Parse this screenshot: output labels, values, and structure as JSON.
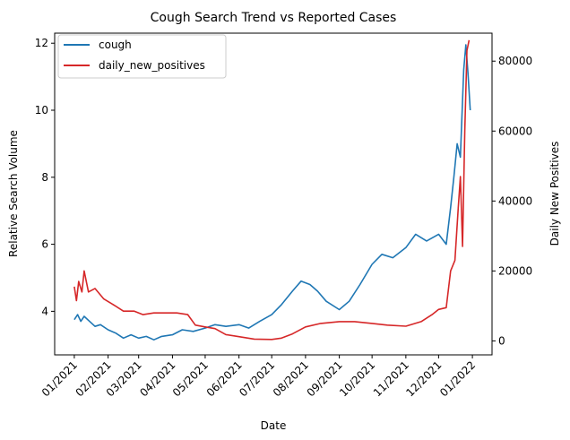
{
  "chart_data": {
    "type": "line",
    "title": "Cough Search Trend vs Reported Cases",
    "xlabel": "Date",
    "ylabel_left": "Relative Search Volume",
    "ylabel_right": "Daily New Positives",
    "x_ticks": [
      "01/2021",
      "02/2021",
      "03/2021",
      "04/2021",
      "05/2021",
      "06/2021",
      "07/2021",
      "08/2021",
      "09/2021",
      "10/2021",
      "11/2021",
      "12/2021",
      "01/2022"
    ],
    "x_tick_dates": [
      "2021-01-01",
      "2021-02-01",
      "2021-03-01",
      "2021-04-01",
      "2021-05-01",
      "2021-06-01",
      "2021-07-01",
      "2021-08-01",
      "2021-09-01",
      "2021-10-01",
      "2021-11-01",
      "2021-12-01",
      "2022-01-01"
    ],
    "xlim": [
      "2020-12-14",
      "2022-01-19"
    ],
    "y_left_ticks": [
      4,
      6,
      8,
      10,
      12
    ],
    "y_left_lim": [
      2.7,
      12.3
    ],
    "y_right_ticks": [
      0,
      20000,
      40000,
      60000,
      80000
    ],
    "y_right_tick_labels": [
      "0",
      "20000",
      "40000",
      "60000",
      "80000"
    ],
    "y_right_lim": [
      -4000,
      88000
    ],
    "grid": false,
    "legend_position": "top-left",
    "series": [
      {
        "name": "cough",
        "axis": "left",
        "color": "#1f77b4",
        "points": [
          [
            "2021-01-01",
            3.75
          ],
          [
            "2021-01-04",
            3.9
          ],
          [
            "2021-01-07",
            3.7
          ],
          [
            "2021-01-10",
            3.85
          ],
          [
            "2021-01-15",
            3.7
          ],
          [
            "2021-01-20",
            3.55
          ],
          [
            "2021-01-25",
            3.6
          ],
          [
            "2021-02-01",
            3.45
          ],
          [
            "2021-02-08",
            3.35
          ],
          [
            "2021-02-15",
            3.2
          ],
          [
            "2021-02-22",
            3.3
          ],
          [
            "2021-03-01",
            3.2
          ],
          [
            "2021-03-08",
            3.25
          ],
          [
            "2021-03-15",
            3.15
          ],
          [
            "2021-03-22",
            3.25
          ],
          [
            "2021-04-01",
            3.3
          ],
          [
            "2021-04-10",
            3.45
          ],
          [
            "2021-04-20",
            3.4
          ],
          [
            "2021-05-01",
            3.5
          ],
          [
            "2021-05-10",
            3.6
          ],
          [
            "2021-05-20",
            3.55
          ],
          [
            "2021-06-01",
            3.6
          ],
          [
            "2021-06-10",
            3.5
          ],
          [
            "2021-06-20",
            3.7
          ],
          [
            "2021-07-01",
            3.9
          ],
          [
            "2021-07-10",
            4.2
          ],
          [
            "2021-07-20",
            4.6
          ],
          [
            "2021-07-28",
            4.9
          ],
          [
            "2021-08-05",
            4.8
          ],
          [
            "2021-08-12",
            4.6
          ],
          [
            "2021-08-20",
            4.3
          ],
          [
            "2021-09-01",
            4.05
          ],
          [
            "2021-09-10",
            4.3
          ],
          [
            "2021-09-20",
            4.8
          ],
          [
            "2021-10-01",
            5.4
          ],
          [
            "2021-10-10",
            5.7
          ],
          [
            "2021-10-20",
            5.6
          ],
          [
            "2021-11-01",
            5.9
          ],
          [
            "2021-11-10",
            6.3
          ],
          [
            "2021-11-20",
            6.1
          ],
          [
            "2021-12-01",
            6.3
          ],
          [
            "2021-12-08",
            6.0
          ],
          [
            "2021-12-12",
            7.1
          ],
          [
            "2021-12-15",
            8.0
          ],
          [
            "2021-12-18",
            9.0
          ],
          [
            "2021-12-21",
            8.6
          ],
          [
            "2021-12-24",
            11.2
          ],
          [
            "2021-12-26",
            11.95
          ],
          [
            "2021-12-28",
            11.1
          ],
          [
            "2021-12-30",
            10.0
          ]
        ]
      },
      {
        "name": "daily_new_positives",
        "axis": "right",
        "color": "#d62728",
        "points": [
          [
            "2021-01-01",
            15500
          ],
          [
            "2021-01-03",
            11500
          ],
          [
            "2021-01-05",
            17000
          ],
          [
            "2021-01-08",
            14000
          ],
          [
            "2021-01-10",
            20000
          ],
          [
            "2021-01-14",
            14000
          ],
          [
            "2021-01-20",
            15000
          ],
          [
            "2021-01-28",
            12000
          ],
          [
            "2021-02-05",
            10500
          ],
          [
            "2021-02-15",
            8500
          ],
          [
            "2021-02-25",
            8500
          ],
          [
            "2021-03-05",
            7500
          ],
          [
            "2021-03-15",
            8000
          ],
          [
            "2021-03-25",
            8000
          ],
          [
            "2021-04-05",
            8000
          ],
          [
            "2021-04-15",
            7500
          ],
          [
            "2021-04-22",
            4500
          ],
          [
            "2021-05-01",
            4000
          ],
          [
            "2021-05-10",
            3500
          ],
          [
            "2021-05-20",
            1800
          ],
          [
            "2021-06-01",
            1200
          ],
          [
            "2021-06-15",
            500
          ],
          [
            "2021-07-01",
            400
          ],
          [
            "2021-07-10",
            800
          ],
          [
            "2021-07-20",
            2000
          ],
          [
            "2021-08-01",
            4000
          ],
          [
            "2021-08-15",
            5000
          ],
          [
            "2021-09-01",
            5500
          ],
          [
            "2021-09-15",
            5500
          ],
          [
            "2021-10-01",
            5000
          ],
          [
            "2021-10-15",
            4500
          ],
          [
            "2021-11-01",
            4200
          ],
          [
            "2021-11-15",
            5500
          ],
          [
            "2021-11-25",
            7500
          ],
          [
            "2021-12-01",
            9000
          ],
          [
            "2021-12-08",
            9500
          ],
          [
            "2021-12-12",
            20000
          ],
          [
            "2021-12-16",
            23000
          ],
          [
            "2021-12-19",
            38000
          ],
          [
            "2021-12-21",
            47000
          ],
          [
            "2021-12-23",
            27000
          ],
          [
            "2021-12-25",
            60000
          ],
          [
            "2021-12-27",
            83000
          ],
          [
            "2021-12-29",
            86000
          ]
        ]
      }
    ]
  }
}
